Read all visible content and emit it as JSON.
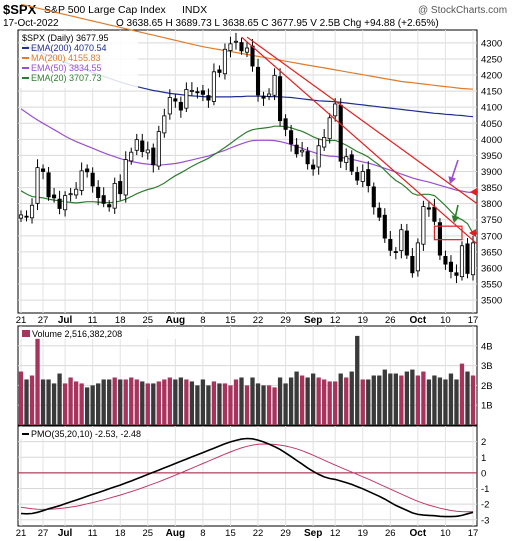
{
  "header": {
    "symbol": "$SPX",
    "name": "S&P 500 Large Cap Index",
    "exchange": "INDX",
    "date": "17-Oct-2022",
    "ohlc": "O 3638.65  H 3689.73  L 3638.65  C 3677.95  V 2.5B  Chg +94.88 (+2.65%)",
    "brand": "@ StockCharts.com"
  },
  "legend": [
    {
      "text": "$SPX (Daily) 3677.95",
      "color": "#000000"
    },
    {
      "text": "EMA(200) 4070.54",
      "color": "#1f2f8f"
    },
    {
      "text": "MA(200) 4155.83",
      "color": "#e07b2a"
    },
    {
      "text": "EMA(50) 3834.55",
      "color": "#9a4fd0"
    },
    {
      "text": "EMA(20) 3707.73",
      "color": "#2e7d2e"
    }
  ],
  "volume_legend": "Volume 2,516,382,208",
  "pmo_legend": "PMO(35,20,10) -2.53, -2.48",
  "x_tick_labels": [
    "21",
    "27",
    "Jul",
    "11",
    "18",
    "25",
    "Aug",
    "8",
    "15",
    "22",
    "29",
    "Sep",
    "12",
    "19",
    "26",
    "Oct",
    "10",
    "17"
  ],
  "price_axis_labels": [
    "4300",
    "4250",
    "4200",
    "4150",
    "4100",
    "4050",
    "4000",
    "3950",
    "3900",
    "3850",
    "3800",
    "3750",
    "3700",
    "3650",
    "3600",
    "3550",
    "3500"
  ],
  "volume_axis_labels": [
    "4B",
    "3B",
    "2B",
    "1B"
  ],
  "pmo_axis_labels": [
    "2",
    "1",
    "0",
    "-1",
    "-2",
    "-3"
  ],
  "chart_data": {
    "type": "candlestick",
    "title": "$SPX S&P 500 Large Cap Index INDX",
    "x": [
      "Jun 21",
      "Jun 22",
      "Jun 23",
      "Jun 24",
      "Jun 27",
      "Jun 28",
      "Jun 29",
      "Jun 30",
      "Jul 1",
      "Jul 5",
      "Jul 6",
      "Jul 7",
      "Jul 8",
      "Jul 11",
      "Jul 12",
      "Jul 13",
      "Jul 14",
      "Jul 15",
      "Jul 18",
      "Jul 19",
      "Jul 20",
      "Jul 21",
      "Jul 22",
      "Jul 25",
      "Jul 26",
      "Jul 27",
      "Jul 28",
      "Jul 29",
      "Aug 1",
      "Aug 2",
      "Aug 3",
      "Aug 4",
      "Aug 5",
      "Aug 8",
      "Aug 9",
      "Aug 10",
      "Aug 11",
      "Aug 12",
      "Aug 15",
      "Aug 16",
      "Aug 17",
      "Aug 18",
      "Aug 19",
      "Aug 22",
      "Aug 23",
      "Aug 24",
      "Aug 25",
      "Aug 26",
      "Aug 29",
      "Aug 30",
      "Aug 31",
      "Sep 1",
      "Sep 2",
      "Sep 6",
      "Sep 7",
      "Sep 8",
      "Sep 9",
      "Sep 12",
      "Sep 13",
      "Sep 14",
      "Sep 15",
      "Sep 16",
      "Sep 19",
      "Sep 20",
      "Sep 21",
      "Sep 22",
      "Sep 23",
      "Sep 26",
      "Sep 27",
      "Sep 28",
      "Sep 29",
      "Sep 30",
      "Oct 3",
      "Oct 4",
      "Oct 5",
      "Oct 6",
      "Oct 7",
      "Oct 10",
      "Oct 11",
      "Oct 12",
      "Oct 13",
      "Oct 14",
      "Oct 17"
    ],
    "series": [
      {
        "name": "Close",
        "values": [
          3765,
          3760,
          3795,
          3912,
          3900,
          3821,
          3818,
          3785,
          3825,
          3831,
          3845,
          3902,
          3899,
          3855,
          3819,
          3801,
          3790,
          3863,
          3831,
          3937,
          3960,
          3999,
          3962,
          3967,
          3921,
          4024,
          4073,
          4130,
          4119,
          4091,
          4155,
          4152,
          4145,
          4140,
          4122,
          4210,
          4208,
          4280,
          4297,
          4305,
          4275,
          4284,
          4228,
          4138,
          4128,
          4141,
          4199,
          4058,
          4031,
          3986,
          3955,
          3966,
          3924,
          3908,
          3980,
          4006,
          4067,
          4110,
          3932,
          3946,
          3901,
          3873,
          3900,
          3856,
          3790,
          3758,
          3693,
          3655,
          3648,
          3719,
          3640,
          3585,
          3678,
          3791,
          3783,
          3745,
          3640,
          3612,
          3589,
          3577,
          3669,
          3583,
          3678
        ]
      },
      {
        "name": "EMA(200)",
        "values": [
          4300,
          4291,
          4282,
          4275,
          4268,
          4261,
          4254,
          4247,
          4240,
          4233,
          4226,
          4220,
          4214,
          4208,
          4202,
          4196,
          4190,
          4184,
          4178,
          4173,
          4168,
          4164,
          4160,
          4156,
          4152,
          4149,
          4146,
          4143,
          4141,
          4139,
          4137,
          4135,
          4134,
          4133,
          4132,
          4132,
          4132,
          4132,
          4132,
          4133,
          4133,
          4134,
          4134,
          4134,
          4134,
          4133,
          4133,
          4132,
          4131,
          4130,
          4128,
          4126,
          4124,
          4122,
          4120,
          4119,
          4118,
          4117,
          4115,
          4113,
          4111,
          4109,
          4107,
          4105,
          4103,
          4101,
          4099,
          4097,
          4095,
          4093,
          4091,
          4089,
          4087,
          4085,
          4083,
          4081,
          4080,
          4078,
          4077,
          4075,
          4074,
          4072,
          4070.54
        ]
      },
      {
        "name": "MA(200)",
        "values": [
          4420,
          4416,
          4412,
          4408,
          4404,
          4400,
          4396,
          4392,
          4388,
          4384,
          4380,
          4376,
          4372,
          4368,
          4364,
          4360,
          4356,
          4352,
          4348,
          4344,
          4340,
          4336,
          4332,
          4328,
          4324,
          4320,
          4316,
          4312,
          4308,
          4304,
          4300,
          4296,
          4292,
          4288,
          4285,
          4282,
          4279,
          4276,
          4273,
          4270,
          4267,
          4264,
          4261,
          4258,
          4255,
          4252,
          4249,
          4246,
          4243,
          4240,
          4237,
          4234,
          4231,
          4228,
          4225,
          4222,
          4219,
          4216,
          4213,
          4210,
          4207,
          4204,
          4201,
          4198,
          4195,
          4192,
          4189,
          4186,
          4183,
          4180,
          4178,
          4176,
          4174,
          4172,
          4170,
          4168,
          4166,
          4164,
          4162,
          4160,
          4158,
          4157,
          4155.83
        ]
      },
      {
        "name": "EMA(50)",
        "values": [
          4095,
          4083,
          4071,
          4060,
          4050,
          4040,
          4030,
          4020,
          4010,
          4001,
          3993,
          3986,
          3979,
          3972,
          3965,
          3958,
          3952,
          3946,
          3940,
          3935,
          3931,
          3928,
          3925,
          3923,
          3921,
          3920,
          3921,
          3923,
          3925,
          3928,
          3932,
          3936,
          3940,
          3944,
          3948,
          3954,
          3960,
          3966,
          3973,
          3980,
          3986,
          3992,
          3996,
          3997,
          3997,
          3997,
          3996,
          3993,
          3989,
          3984,
          3978,
          3972,
          3966,
          3960,
          3954,
          3950,
          3948,
          3947,
          3944,
          3941,
          3938,
          3934,
          3930,
          3926,
          3921,
          3916,
          3910,
          3904,
          3898,
          3892,
          3886,
          3880,
          3875,
          3871,
          3867,
          3862,
          3857,
          3852,
          3847,
          3842,
          3839,
          3836,
          3834.55
        ]
      },
      {
        "name": "EMA(20)",
        "values": [
          3840,
          3830,
          3822,
          3820,
          3818,
          3814,
          3811,
          3809,
          3806,
          3804,
          3802,
          3804,
          3806,
          3806,
          3805,
          3804,
          3803,
          3805,
          3808,
          3814,
          3822,
          3831,
          3838,
          3844,
          3848,
          3855,
          3864,
          3876,
          3887,
          3896,
          3906,
          3916,
          3925,
          3933,
          3941,
          3952,
          3963,
          3975,
          3987,
          4000,
          4012,
          4023,
          4030,
          4033,
          4035,
          4037,
          4041,
          4041,
          4040,
          4036,
          4030,
          4025,
          4017,
          4008,
          4001,
          3997,
          3996,
          3997,
          3990,
          3982,
          3972,
          3962,
          3954,
          3945,
          3932,
          3920,
          3904,
          3887,
          3872,
          3862,
          3848,
          3832,
          3826,
          3829,
          3829,
          3825,
          3810,
          3794,
          3776,
          3758,
          3750,
          3738,
          3707.73
        ]
      },
      {
        "name": "Volume",
        "values": [
          2.7,
          2.3,
          2.5,
          4.4,
          2.3,
          2.3,
          2.1,
          2.6,
          2.1,
          2.4,
          2.2,
          2.1,
          1.9,
          2.0,
          2.1,
          2.3,
          2.3,
          2.4,
          2.3,
          2.3,
          2.4,
          2.3,
          2.2,
          2.1,
          2.1,
          2.2,
          2.3,
          2.4,
          2.3,
          2.4,
          2.3,
          2.2,
          2.0,
          2.3,
          2.0,
          2.2,
          2.1,
          2.1,
          2.0,
          2.3,
          2.4,
          2.0,
          2.4,
          2.1,
          2.0,
          2.0,
          1.9,
          2.4,
          2.1,
          2.4,
          2.7,
          2.5,
          2.4,
          2.6,
          2.4,
          2.3,
          2.2,
          2.2,
          2.6,
          2.4,
          2.7,
          4.5,
          2.3,
          2.3,
          2.5,
          2.5,
          2.8,
          2.6,
          2.6,
          2.5,
          2.7,
          2.8,
          2.5,
          2.7,
          2.3,
          2.5,
          2.4,
          2.3,
          2.6,
          2.3,
          3.1,
          2.7,
          2.5
        ]
      },
      {
        "name": "PMO",
        "values": [
          -2.6,
          -2.62,
          -2.6,
          -2.52,
          -2.42,
          -2.3,
          -2.2,
          -2.1,
          -1.98,
          -1.86,
          -1.74,
          -1.62,
          -1.5,
          -1.38,
          -1.26,
          -1.14,
          -1.02,
          -0.9,
          -0.78,
          -0.65,
          -0.52,
          -0.38,
          -0.24,
          -0.1,
          0.04,
          0.18,
          0.32,
          0.46,
          0.6,
          0.74,
          0.88,
          1.02,
          1.16,
          1.3,
          1.44,
          1.58,
          1.72,
          1.86,
          1.98,
          2.08,
          2.16,
          2.2,
          2.18,
          2.1,
          1.98,
          1.84,
          1.68,
          1.5,
          1.28,
          1.04,
          0.8,
          0.56,
          0.32,
          0.1,
          -0.1,
          -0.26,
          -0.36,
          -0.42,
          -0.52,
          -0.62,
          -0.74,
          -0.88,
          -1.02,
          -1.18,
          -1.34,
          -1.5,
          -1.68,
          -1.88,
          -2.08,
          -2.24,
          -2.4,
          -2.56,
          -2.66,
          -2.7,
          -2.72,
          -2.74,
          -2.78,
          -2.8,
          -2.8,
          -2.78,
          -2.72,
          -2.62,
          -2.53
        ]
      },
      {
        "name": "PMO Signal",
        "values": [
          -2.2,
          -2.25,
          -2.3,
          -2.33,
          -2.34,
          -2.33,
          -2.31,
          -2.28,
          -2.24,
          -2.19,
          -2.13,
          -2.06,
          -1.98,
          -1.9,
          -1.81,
          -1.72,
          -1.62,
          -1.52,
          -1.42,
          -1.31,
          -1.2,
          -1.08,
          -0.96,
          -0.83,
          -0.7,
          -0.57,
          -0.43,
          -0.29,
          -0.15,
          0,
          0.15,
          0.3,
          0.45,
          0.6,
          0.75,
          0.9,
          1.05,
          1.2,
          1.34,
          1.48,
          1.6,
          1.7,
          1.78,
          1.83,
          1.85,
          1.84,
          1.82,
          1.78,
          1.72,
          1.64,
          1.54,
          1.42,
          1.28,
          1.13,
          0.97,
          0.81,
          0.65,
          0.5,
          0.35,
          0.2,
          0.05,
          -0.1,
          -0.25,
          -0.4,
          -0.56,
          -0.72,
          -0.88,
          -1.04,
          -1.2,
          -1.36,
          -1.52,
          -1.68,
          -1.82,
          -1.95,
          -2.06,
          -2.16,
          -2.26,
          -2.34,
          -2.41,
          -2.45,
          -2.48,
          -2.49,
          -2.48
        ]
      }
    ],
    "price_ylim": [
      3460,
      4340
    ],
    "volume_ylim": [
      0,
      5
    ],
    "pmo_ylim": [
      -3.4,
      3.0
    ],
    "annotations": [
      {
        "type": "trendline",
        "color": "#e02020"
      },
      {
        "type": "trendline",
        "color": "#e02020"
      },
      {
        "type": "box",
        "color": "#e02020"
      },
      {
        "type": "arrow",
        "color": "#9a4fd0"
      },
      {
        "type": "arrow",
        "color": "#2e7d2e"
      },
      {
        "type": "arrow",
        "color": "#e02020"
      },
      {
        "type": "arrow",
        "color": "#e02020"
      }
    ],
    "grid": true,
    "legend_placement": "top-left"
  }
}
